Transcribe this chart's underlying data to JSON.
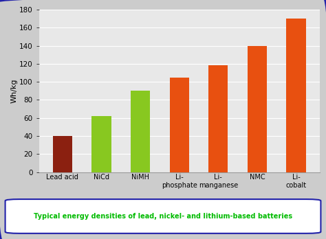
{
  "categories": [
    "Lead acid",
    "NiCd",
    "NiMH",
    "Li-\nphosphate",
    "Li-\nmanganese",
    "NMC",
    "Li-\ncobalt"
  ],
  "values": [
    40,
    62,
    90,
    105,
    118,
    140,
    170
  ],
  "bar_colors": [
    "#8B2010",
    "#88C820",
    "#88C820",
    "#E85010",
    "#E85010",
    "#E85010",
    "#E85010"
  ],
  "ylabel": "Wh/kg",
  "ylim": [
    0,
    180
  ],
  "yticks": [
    0,
    20,
    40,
    60,
    80,
    100,
    120,
    140,
    160,
    180
  ],
  "caption": "Typical energy densities of lead, nickel- and lithium-based batteries",
  "caption_color": "#00BB00",
  "plot_bg_color": "#E8E8E8",
  "fig_bg_color": "#CCCCCC",
  "outer_border_color": "#2222AA",
  "caption_border_color": "#2222AA",
  "grid_color": "#FFFFFF",
  "bar_width": 0.5
}
